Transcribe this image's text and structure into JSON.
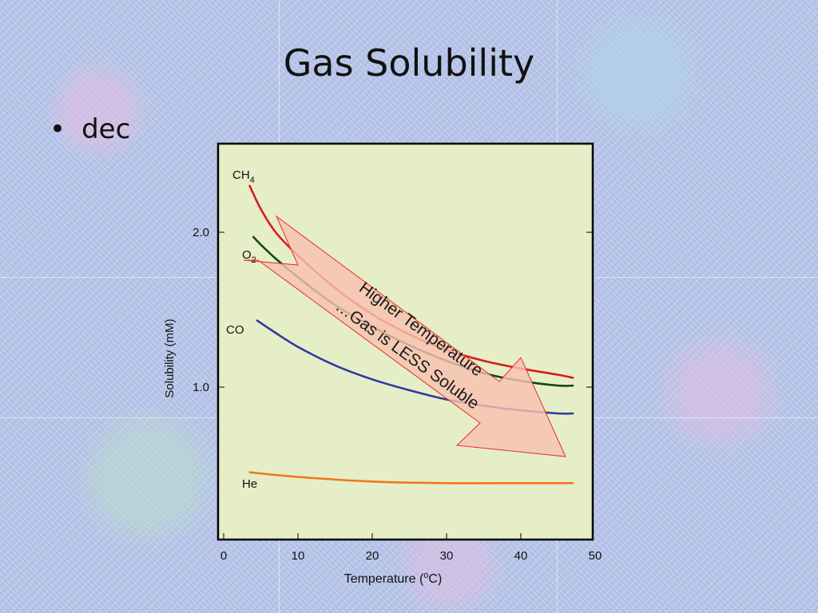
{
  "slide": {
    "title": "Gas Solubility",
    "bullet_symbol": "•",
    "bullet_text": "dec"
  },
  "colors": {
    "CH4": "#d61c1c",
    "O2": "#0d4a12",
    "CO": "#2f3aa0",
    "He": "#f07818",
    "plot_background": "#e6eec8",
    "arrow_fill": "#f8c2b0",
    "arrow_stroke": "#e03020"
  },
  "chart_data": {
    "type": "line",
    "xlabel": "Temperature (oC)",
    "xlabel_main": "Temperature (",
    "xlabel_sup": "o",
    "xlabel_end": "C)",
    "ylabel": "Solubility (mM)",
    "xlim": [
      0,
      50
    ],
    "ylim": [
      0,
      2.5
    ],
    "xticks": [
      {
        "value": 0,
        "label": "0"
      },
      {
        "value": 10,
        "label": "10"
      },
      {
        "value": 20,
        "label": "20"
      },
      {
        "value": 30,
        "label": "30"
      },
      {
        "value": 40,
        "label": "40"
      },
      {
        "value": 50,
        "label": "50"
      }
    ],
    "yticks": [
      {
        "value": 1.0,
        "label": "1.0"
      },
      {
        "value": 2.0,
        "label": "2.0"
      }
    ],
    "grid": false,
    "series": [
      {
        "name": "CH4",
        "label_main": "CH",
        "label_sub": "4",
        "color_key": "CH4",
        "x": [
          3.5,
          5,
          7,
          10,
          15,
          20,
          25,
          30,
          35,
          40,
          45,
          47
        ],
        "y": [
          2.3,
          2.15,
          2.0,
          1.85,
          1.64,
          1.47,
          1.34,
          1.24,
          1.17,
          1.12,
          1.08,
          1.06
        ]
      },
      {
        "name": "O2",
        "label_main": "O",
        "label_sub": "2",
        "color_key": "O2",
        "x": [
          4,
          5,
          7,
          10,
          15,
          20,
          25,
          30,
          35,
          40,
          45,
          47
        ],
        "y": [
          1.97,
          1.92,
          1.83,
          1.71,
          1.53,
          1.39,
          1.27,
          1.17,
          1.09,
          1.04,
          1.01,
          1.01
        ]
      },
      {
        "name": "CO",
        "label_main": "CO",
        "label_sub": "",
        "color_key": "CO",
        "x": [
          4.5,
          7,
          10,
          15,
          20,
          25,
          30,
          35,
          40,
          45,
          47
        ],
        "y": [
          1.43,
          1.35,
          1.26,
          1.14,
          1.05,
          0.98,
          0.92,
          0.88,
          0.85,
          0.83,
          0.83
        ]
      },
      {
        "name": "He",
        "label_main": "He",
        "label_sub": "",
        "color_key": "He",
        "x": [
          3.5,
          10,
          20,
          30,
          40,
          47
        ],
        "y": [
          0.45,
          0.42,
          0.39,
          0.38,
          0.38,
          0.38
        ]
      }
    ],
    "annotation": {
      "line1": "Higher Temperature",
      "line2": "…Gas is LESS Soluble"
    }
  }
}
